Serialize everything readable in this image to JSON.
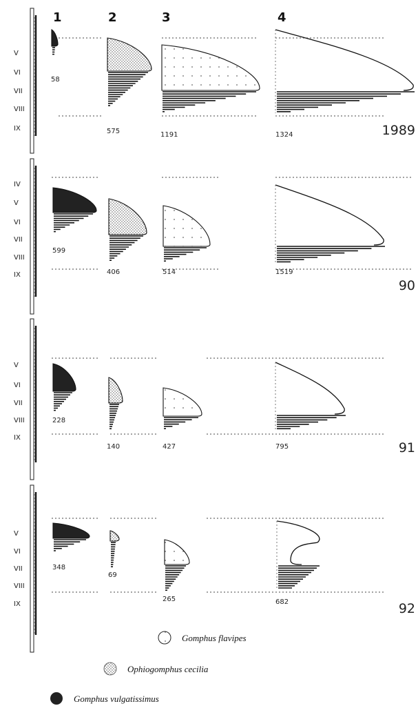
{
  "chart_data": {
    "type": "area",
    "columns": [
      "1",
      "2",
      "3",
      "4"
    ],
    "month_labels": [
      "IV",
      "V",
      "VI",
      "VII",
      "VIII",
      "IX"
    ],
    "species": [
      {
        "name": "Gomphus flavipes",
        "pattern": "dotted-white"
      },
      {
        "name": "Ophiogomphus cecilia",
        "pattern": "dense-dotted"
      },
      {
        "name": "Gomphus vulgatissimus",
        "pattern": "solid-black"
      }
    ],
    "years": [
      {
        "year": "1989",
        "months": [
          "V",
          "VI",
          "VII",
          "VIII",
          "IX"
        ],
        "panels": [
          {
            "col": 1,
            "count": 58
          },
          {
            "col": 2,
            "count": 575
          },
          {
            "col": 3,
            "count": 1191
          },
          {
            "col": 4,
            "count": 1324
          }
        ]
      },
      {
        "year": "90",
        "months": [
          "IV",
          "V",
          "VI",
          "VII",
          "VIII",
          "IX"
        ],
        "panels": [
          {
            "col": 1,
            "count": 599
          },
          {
            "col": 2,
            "count": 406
          },
          {
            "col": 3,
            "count": 514
          },
          {
            "col": 4,
            "count": 1519
          }
        ]
      },
      {
        "year": "91",
        "months": [
          "V",
          "VI",
          "VII",
          "VIII",
          "IX"
        ],
        "panels": [
          {
            "col": 1,
            "count": 228
          },
          {
            "col": 2,
            "count": 140
          },
          {
            "col": 3,
            "count": 427
          },
          {
            "col": 4,
            "count": 795
          }
        ]
      },
      {
        "year": "92",
        "months": [
          "V",
          "VI",
          "VII",
          "VIII",
          "IX"
        ],
        "panels": [
          {
            "col": 1,
            "count": 348
          },
          {
            "col": 2,
            "count": 69
          },
          {
            "col": 3,
            "count": 265
          },
          {
            "col": 4,
            "count": 682
          }
        ]
      }
    ]
  },
  "legend": [
    {
      "label": "Gomphus flavipes"
    },
    {
      "label": "Ophiogomphus cecilia"
    },
    {
      "label": "Gomphus vulgatissimus"
    }
  ]
}
